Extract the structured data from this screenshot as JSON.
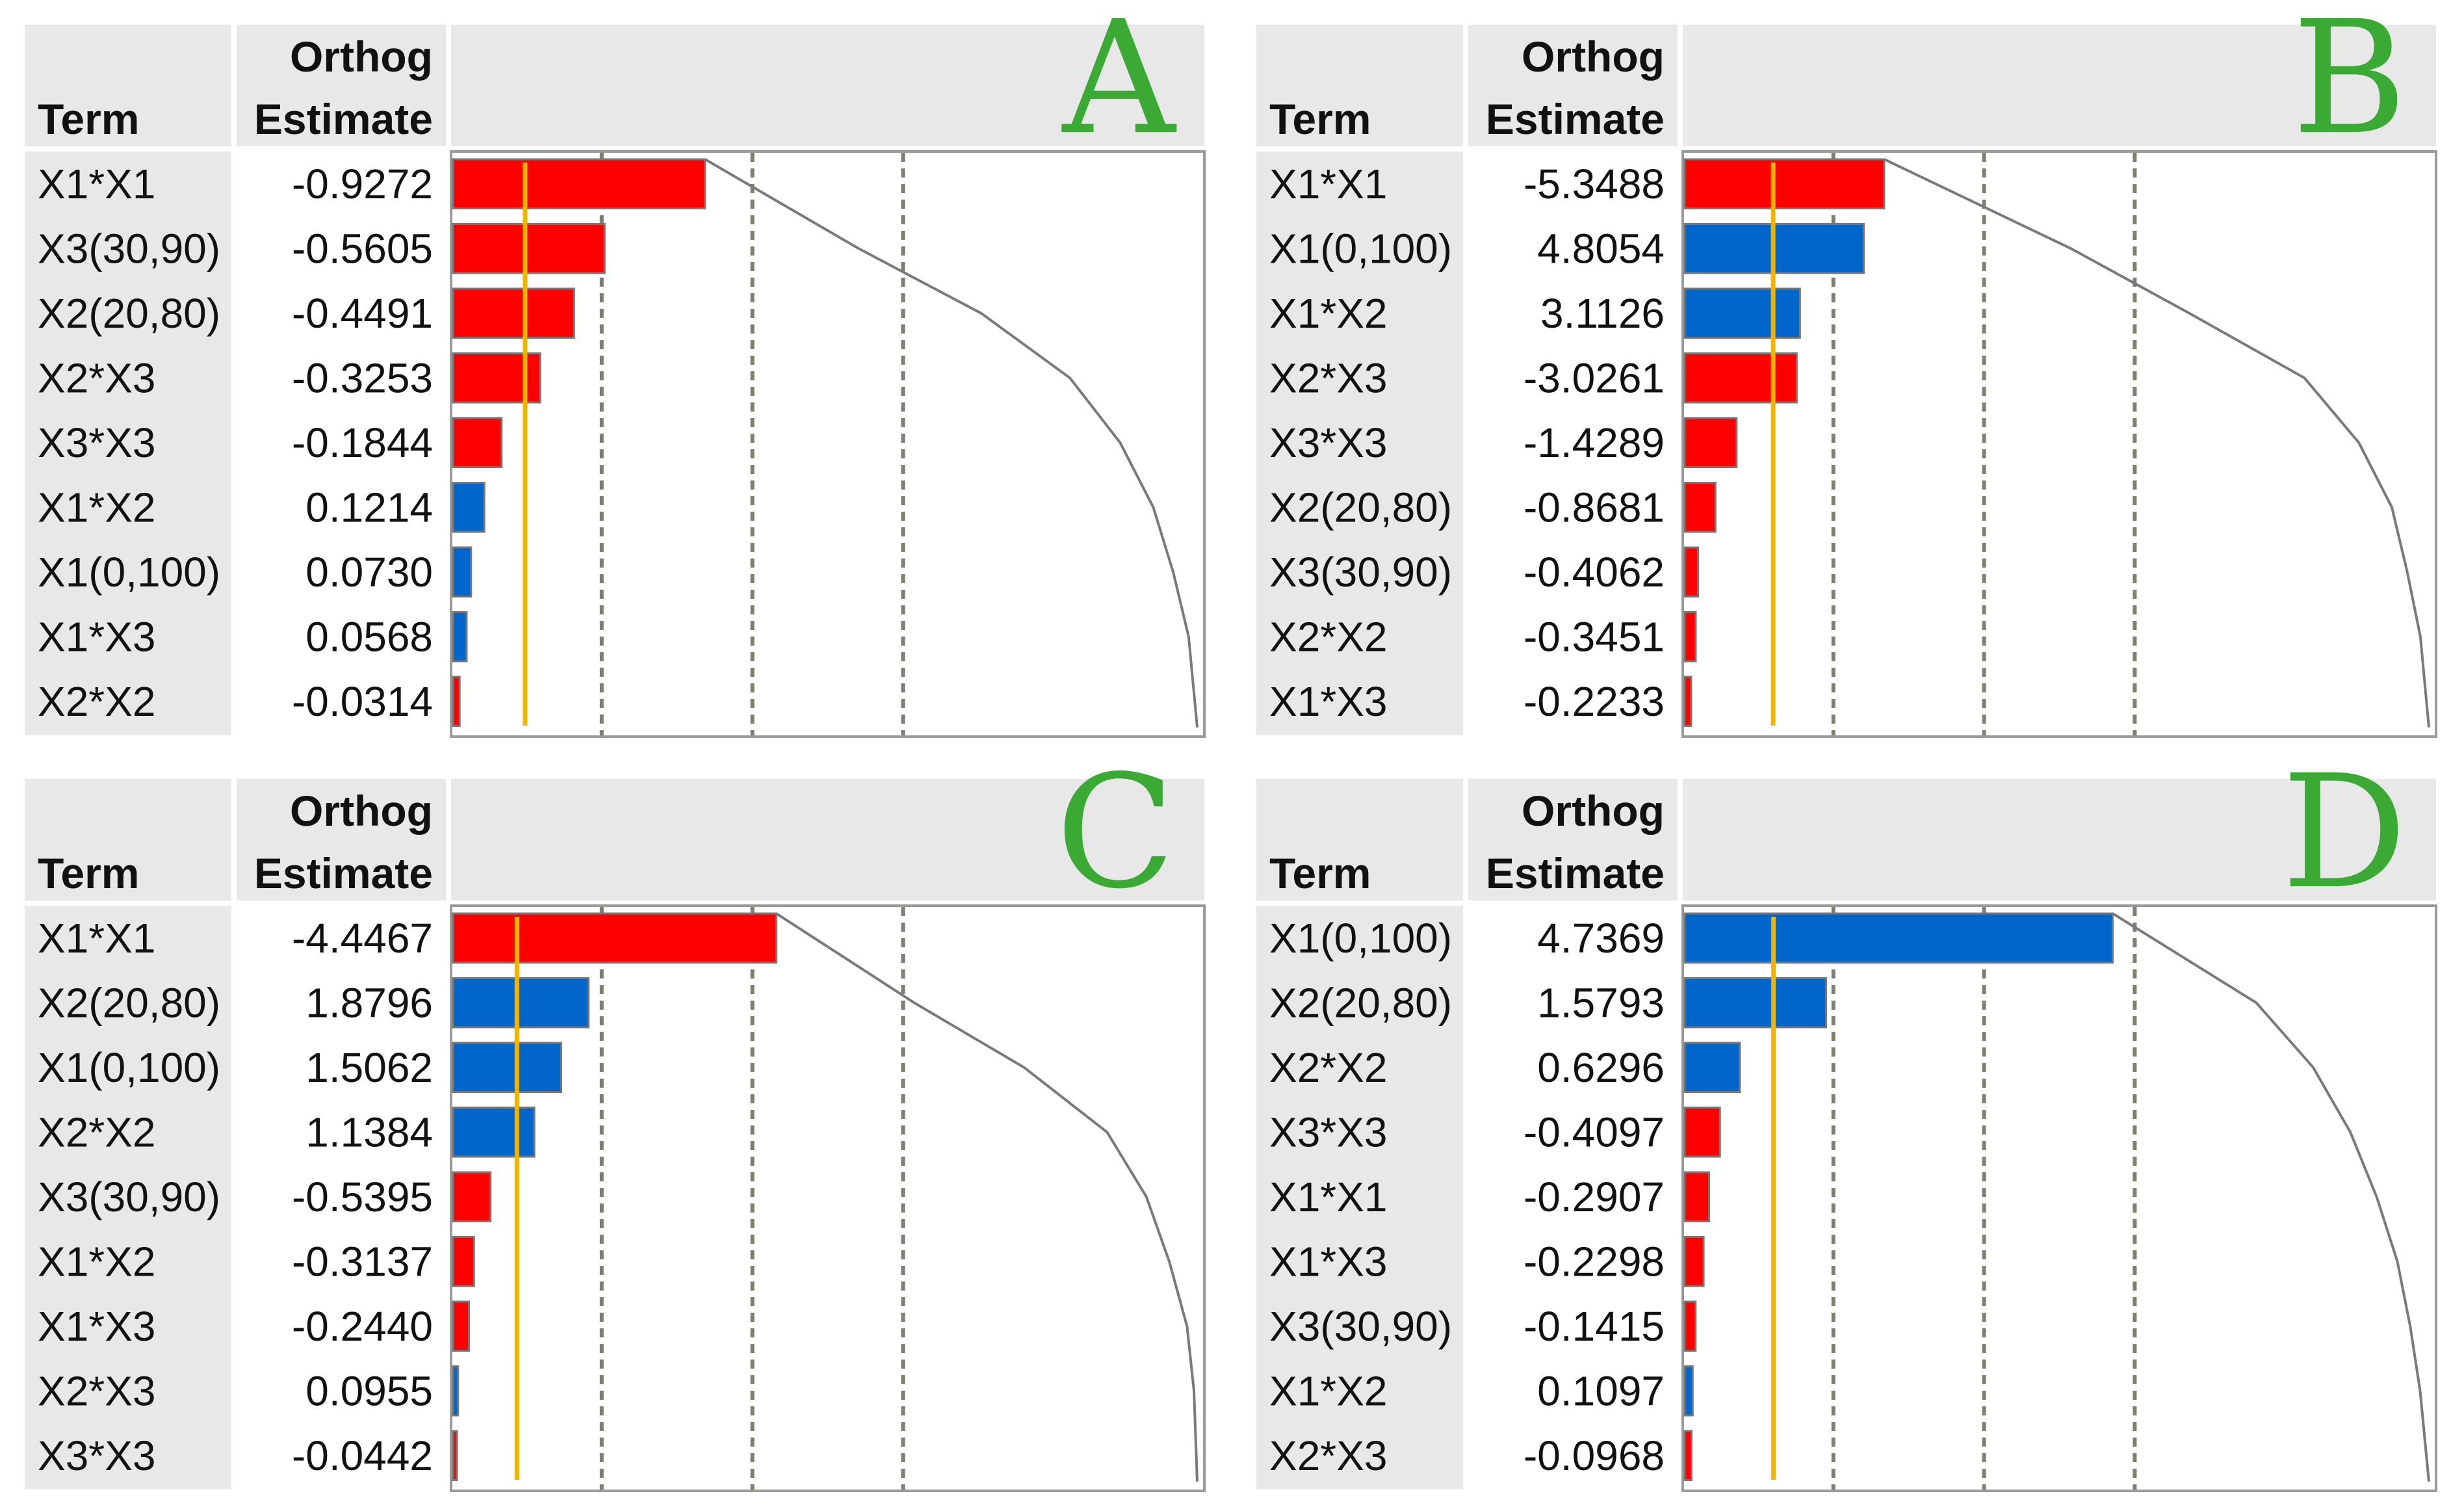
{
  "chart_data": [
    {
      "type": "bar",
      "panel_label": "A",
      "columns": [
        "Term",
        "Orthog Estimate"
      ],
      "column_header_line1": "Orthog",
      "column_header_line2": "Estimate",
      "terms": [
        "X1*X1",
        "X3(30,90)",
        "X2(20,80)",
        "X2*X3",
        "X3*X3",
        "X1*X2",
        "X1(0,100)",
        "X1*X3",
        "X2*X2"
      ],
      "estimate_labels": [
        "-0.9272",
        "-0.5605",
        "-0.4491",
        "-0.3253",
        "-0.1844",
        "0.1214",
        "0.0730",
        "0.0568",
        "-0.0314"
      ],
      "values": [
        -0.9272,
        -0.5605,
        -0.4491,
        -0.3253,
        -0.1844,
        0.1214,
        0.073,
        0.0568,
        -0.0314
      ],
      "xlim": [
        0,
        2.75
      ],
      "reference_line": 0.27
    },
    {
      "type": "bar",
      "panel_label": "B",
      "columns": [
        "Term",
        "Orthog Estimate"
      ],
      "column_header_line1": "Orthog",
      "column_header_line2": "Estimate",
      "terms": [
        "X1*X1",
        "X1(0,100)",
        "X1*X2",
        "X2*X3",
        "X3*X3",
        "X2(20,80)",
        "X3(30,90)",
        "X2*X2",
        "X1*X3"
      ],
      "estimate_labels": [
        "-5.3488",
        "4.8054",
        "3.1126",
        "-3.0261",
        "-1.4289",
        "-0.8681",
        "-0.4062",
        "-0.3451",
        "-0.2233"
      ],
      "values": [
        -5.3488,
        4.8054,
        3.1126,
        -3.0261,
        -1.4289,
        -0.8681,
        -0.4062,
        -0.3451,
        -0.2233
      ],
      "xlim": [
        0,
        20
      ],
      "reference_line": 2.4
    },
    {
      "type": "bar",
      "panel_label": "C",
      "columns": [
        "Term",
        "Orthog Estimate"
      ],
      "column_header_line1": "Orthog",
      "column_header_line2": "Estimate",
      "terms": [
        "X1*X1",
        "X2(20,80)",
        "X1(0,100)",
        "X2*X2",
        "X3(30,90)",
        "X1*X2",
        "X1*X3",
        "X2*X3",
        "X3*X3"
      ],
      "estimate_labels": [
        "-4.4467",
        "1.8796",
        "1.5062",
        "1.1384",
        "-0.5395",
        "-0.3137",
        "-0.2440",
        "0.0955",
        "-0.0442"
      ],
      "values": [
        -4.4467,
        1.8796,
        1.5062,
        1.1384,
        -0.5395,
        -0.3137,
        -0.244,
        0.0955,
        -0.0442
      ],
      "xlim": [
        0,
        10.3
      ],
      "reference_line": 0.9
    },
    {
      "type": "bar",
      "panel_label": "D",
      "columns": [
        "Term",
        "Orthog Estimate"
      ],
      "column_header_line1": "Orthog",
      "column_header_line2": "Estimate",
      "terms": [
        "X1(0,100)",
        "X2(20,80)",
        "X2*X2",
        "X3*X3",
        "X1*X1",
        "X1*X3",
        "X3(30,90)",
        "X1*X2",
        "X2*X3"
      ],
      "estimate_labels": [
        "4.7369",
        "1.5793",
        "0.6296",
        "-0.4097",
        "-0.2907",
        "-0.2298",
        "-0.1415",
        "0.1097",
        "-0.0968"
      ],
      "values": [
        4.7369,
        1.5793,
        0.6296,
        -0.4097,
        -0.2907,
        -0.2298,
        -0.1415,
        0.1097,
        -0.0968
      ],
      "xlim": [
        0,
        8.3
      ],
      "reference_line": 1.0
    }
  ],
  "colors": {
    "negative": "#ff0000",
    "positive": "#0066cc",
    "reference": "#f2b400",
    "letter": "#3aaa35"
  }
}
